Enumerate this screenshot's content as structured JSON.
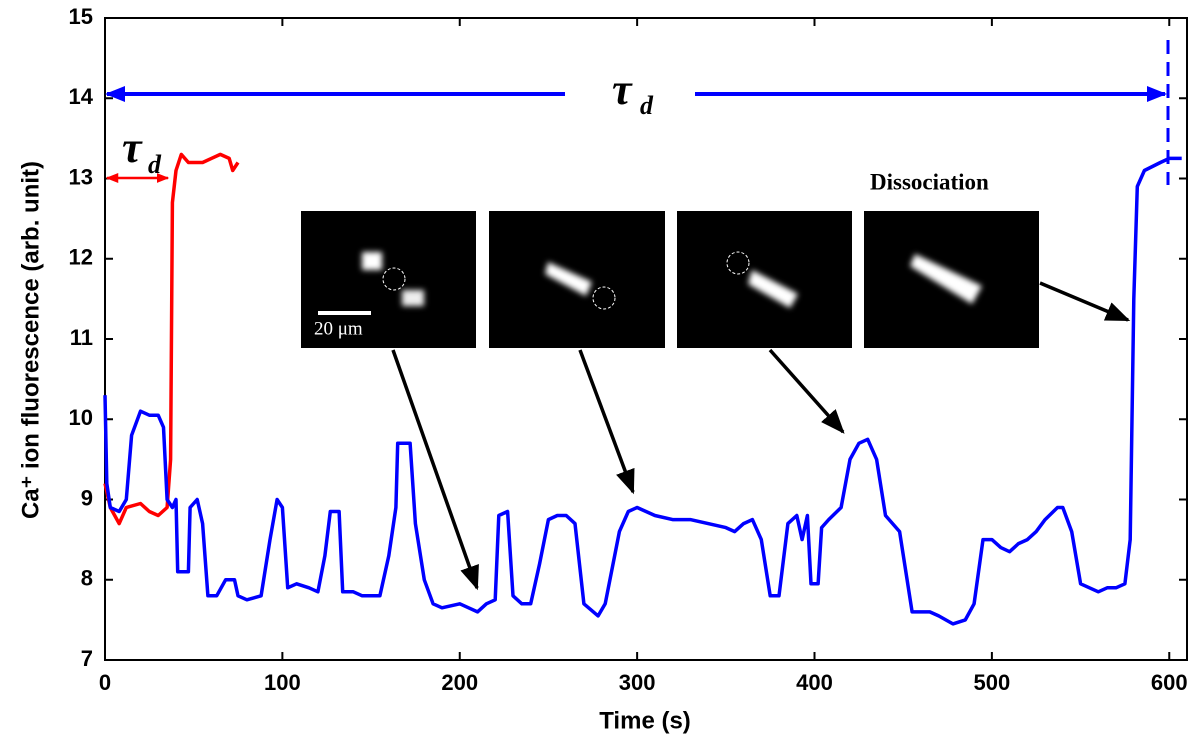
{
  "chart_data": {
    "type": "line",
    "xlabel": "Time (s)",
    "ylabel": "Ca⁺ ion fluorescence (arb. unit)",
    "xlim": [
      0,
      610
    ],
    "ylim": [
      7,
      15
    ],
    "xticks": [
      0,
      100,
      200,
      300,
      400,
      500,
      600
    ],
    "yticks": [
      7,
      8,
      9,
      10,
      11,
      12,
      13,
      14,
      15
    ],
    "grid": false,
    "series": [
      {
        "color": "#ff0000",
        "x": [
          0,
          3,
          8,
          12,
          20,
          25,
          30,
          35,
          37,
          38,
          40,
          43,
          47,
          55,
          60,
          65,
          70,
          72,
          75
        ],
        "values": [
          9.2,
          8.9,
          8.7,
          8.9,
          8.95,
          8.85,
          8.8,
          8.9,
          9.5,
          12.7,
          13.1,
          13.3,
          13.2,
          13.2,
          13.25,
          13.3,
          13.25,
          13.1,
          13.2
        ]
      },
      {
        "color": "#0000ff",
        "x": [
          0,
          1,
          3,
          8,
          12,
          15,
          20,
          25,
          30,
          33,
          35,
          38,
          40,
          41,
          47,
          48,
          52,
          55,
          58,
          63,
          68,
          73,
          75,
          80,
          88,
          93,
          97,
          100,
          103,
          108,
          115,
          120,
          124,
          127,
          132,
          134,
          140,
          145,
          150,
          155,
          160,
          164,
          165,
          172,
          175,
          180,
          185,
          190,
          200,
          205,
          210,
          215,
          220,
          222,
          227,
          230,
          235,
          240,
          245,
          250,
          255,
          260,
          265,
          270,
          278,
          282,
          290,
          295,
          300,
          310,
          320,
          330,
          340,
          350,
          355,
          360,
          365,
          370,
          375,
          380,
          385,
          390,
          393,
          396,
          398,
          402,
          404,
          408,
          415,
          420,
          425,
          430,
          435,
          440,
          448,
          455,
          465,
          470,
          478,
          485,
          490,
          495,
          500,
          505,
          510,
          515,
          520,
          525,
          530,
          537,
          540,
          545,
          550,
          560,
          565,
          570,
          575,
          578,
          580,
          582,
          586,
          595,
          600,
          607
        ],
        "values": [
          10.3,
          9.2,
          8.9,
          8.85,
          9.0,
          9.8,
          10.1,
          10.05,
          10.05,
          9.9,
          9.0,
          8.9,
          9.0,
          8.1,
          8.1,
          8.9,
          9.0,
          8.7,
          7.8,
          7.8,
          8.0,
          8.0,
          7.8,
          7.75,
          7.8,
          8.5,
          9.0,
          8.9,
          7.9,
          7.95,
          7.9,
          7.85,
          8.3,
          8.85,
          8.85,
          7.85,
          7.85,
          7.8,
          7.8,
          7.8,
          8.3,
          8.9,
          9.7,
          9.7,
          8.7,
          8.0,
          7.7,
          7.65,
          7.7,
          7.65,
          7.6,
          7.7,
          7.75,
          8.8,
          8.85,
          7.8,
          7.7,
          7.7,
          8.2,
          8.75,
          8.8,
          8.8,
          8.7,
          7.7,
          7.55,
          7.7,
          8.6,
          8.85,
          8.9,
          8.8,
          8.75,
          8.75,
          8.7,
          8.65,
          8.6,
          8.7,
          8.75,
          8.5,
          7.8,
          7.8,
          8.7,
          8.8,
          8.5,
          8.8,
          7.95,
          7.95,
          8.65,
          8.75,
          8.9,
          9.5,
          9.7,
          9.75,
          9.5,
          8.8,
          8.6,
          7.6,
          7.6,
          7.55,
          7.45,
          7.5,
          7.7,
          8.5,
          8.5,
          8.4,
          8.35,
          8.45,
          8.5,
          8.6,
          8.75,
          8.9,
          8.9,
          8.6,
          7.95,
          7.85,
          7.9,
          7.9,
          7.95,
          8.5,
          11.5,
          12.9,
          13.1,
          13.2,
          13.25,
          13.25
        ]
      }
    ],
    "annotations": {
      "tau": "τ",
      "tau_sub": "d",
      "dissociation": "Dissociation",
      "scale_bar": "20 μm"
    }
  }
}
